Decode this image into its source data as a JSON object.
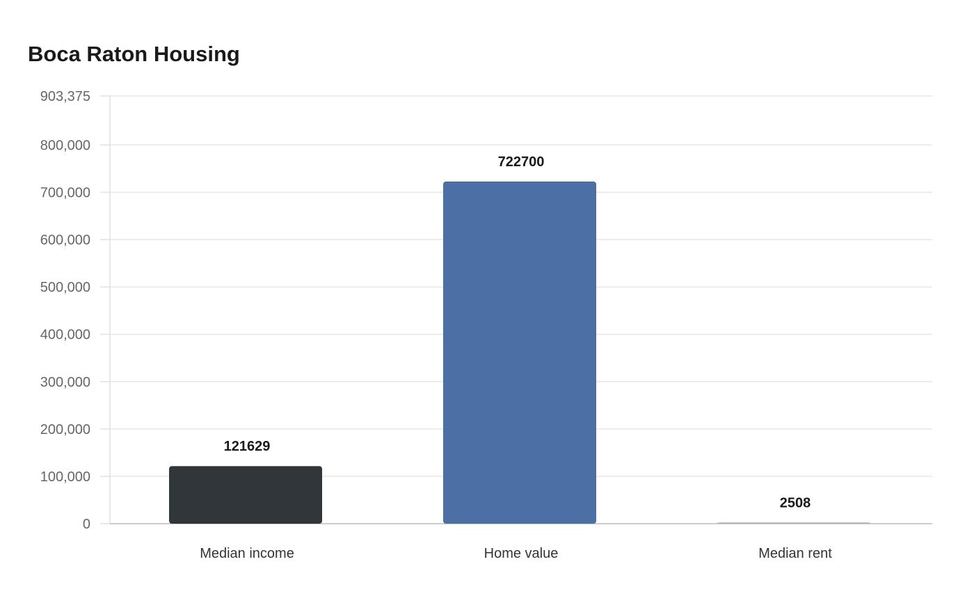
{
  "chart_data": {
    "type": "bar",
    "title": "Boca Raton Housing",
    "categories": [
      "Median income",
      "Home value",
      "Median rent"
    ],
    "values": [
      121629,
      722700,
      2508
    ],
    "value_labels": [
      "121629",
      "722700",
      "2508"
    ],
    "colors": [
      "#30363a",
      "#4c6fa5",
      "#b0b0b0"
    ],
    "ylim": [
      0,
      903375
    ],
    "yticks": [
      0,
      100000,
      200000,
      300000,
      400000,
      500000,
      600000,
      700000,
      800000,
      903375
    ],
    "ytick_labels": [
      "0",
      "100,000",
      "200,000",
      "300,000",
      "400,000",
      "500,000",
      "600,000",
      "700,000",
      "800,000",
      "903,375"
    ],
    "grid": true,
    "xlabel": "",
    "ylabel": ""
  }
}
